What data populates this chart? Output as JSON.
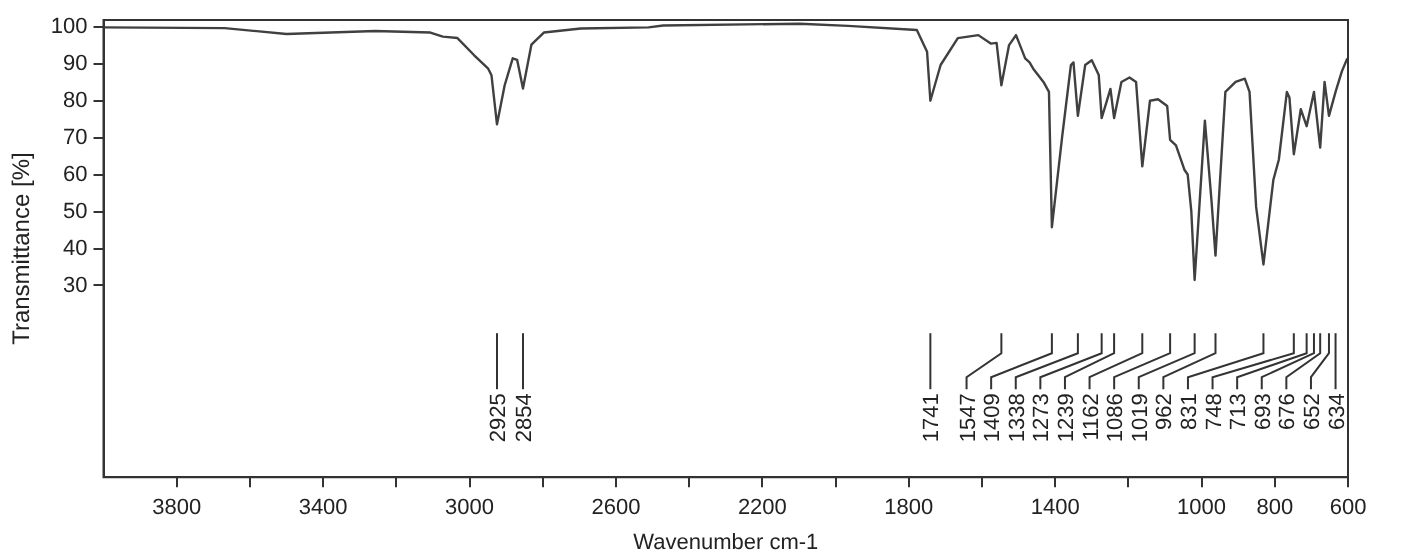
{
  "chart_data": {
    "type": "line",
    "xlabel": "Wavenumber cm-1",
    "ylabel": "Transmittance [%]",
    "x": [
      4000,
      3669,
      3500,
      3258,
      3107,
      3073,
      3033,
      2988,
      2949,
      2940,
      2925,
      2904,
      2882,
      2870,
      2854,
      2831,
      2797,
      2696,
      2511,
      2471,
      2097,
      1966,
      1778,
      1750,
      1741,
      1713,
      1666,
      1610,
      1576,
      1560,
      1547,
      1526,
      1507,
      1482,
      1470,
      1460,
      1432,
      1417,
      1409,
      1381,
      1357,
      1350,
      1338,
      1318,
      1300,
      1281,
      1273,
      1249,
      1239,
      1219,
      1197,
      1179,
      1162,
      1141,
      1119,
      1094,
      1086,
      1070,
      1047,
      1038,
      1028,
      1019,
      991,
      973,
      962,
      935,
      907,
      882,
      869,
      851,
      831,
      804,
      789,
      767,
      760,
      748,
      729,
      713,
      693,
      676,
      664,
      652,
      634,
      617,
      602
    ],
    "series": [
      {
        "color": "#404040",
        "values": [
          100,
          99.8,
          98.2,
          99,
          98.6,
          97.5,
          97.1,
          92.5,
          88.8,
          87,
          73.7,
          84.3,
          91.6,
          91.2,
          83.4,
          95.3,
          98.6,
          99.7,
          100,
          100.5,
          101,
          100.4,
          99.3,
          93.4,
          80.1,
          89.8,
          97.1,
          97.9,
          95.6,
          95.8,
          84.3,
          95.2,
          97.9,
          91.6,
          90.5,
          88.8,
          85.2,
          82.5,
          45.8,
          70.3,
          89.8,
          90.5,
          76,
          89.8,
          91.1,
          87.1,
          75.4,
          83.3,
          75.4,
          85.2,
          86.4,
          85.2,
          62.3,
          80.1,
          80.5,
          78.7,
          69.5,
          68,
          61.4,
          60.1,
          50,
          31.5,
          74.7,
          53.1,
          38.1,
          82.5,
          85.2,
          86.1,
          82.5,
          51.3,
          35.7,
          58.6,
          64.1,
          82.5,
          81,
          65.6,
          77.8,
          73.2,
          82.5,
          67.4,
          85.2,
          76,
          82.5,
          88,
          91.6
        ]
      }
    ],
    "xlim": [
      4000,
      600
    ],
    "xticks": [
      3800,
      {
        "value": 3600,
        "label": null
      },
      3400,
      {
        "value": 3200,
        "label": null
      },
      3000,
      {
        "value": 2800,
        "label": null
      },
      2600,
      {
        "value": 2400,
        "label": null
      },
      2200,
      {
        "value": 2000,
        "label": null
      },
      1800,
      {
        "value": 1600,
        "label": null
      },
      1400,
      {
        "value": 1200,
        "label": null
      },
      1000,
      800,
      600
    ],
    "ylim": [
      -22,
      102
    ],
    "yticks": [
      30,
      40,
      50,
      60,
      70,
      80,
      90,
      100
    ],
    "grid": false,
    "legend": false,
    "marker": "none",
    "line_style": "solid",
    "annotations": [
      {
        "text": "2925",
        "x": 2925
      },
      {
        "text": "2854",
        "x": 2854
      },
      {
        "text": "1741",
        "x": 1741
      },
      {
        "text": "1547",
        "x": 1547
      },
      {
        "text": "1409",
        "x": 1409
      },
      {
        "text": "1338",
        "x": 1338
      },
      {
        "text": "1273",
        "x": 1273
      },
      {
        "text": "1239",
        "x": 1239
      },
      {
        "text": "1162",
        "x": 1162
      },
      {
        "text": "1086",
        "x": 1086
      },
      {
        "text": "1019",
        "x": 1019
      },
      {
        "text": "962",
        "x": 962
      },
      {
        "text": "831",
        "x": 831
      },
      {
        "text": "748",
        "x": 748
      },
      {
        "text": "713",
        "x": 713
      },
      {
        "text": "693",
        "x": 693
      },
      {
        "text": "676",
        "x": 676
      },
      {
        "text": "652",
        "x": 652
      },
      {
        "text": "634",
        "x": 634
      }
    ]
  }
}
